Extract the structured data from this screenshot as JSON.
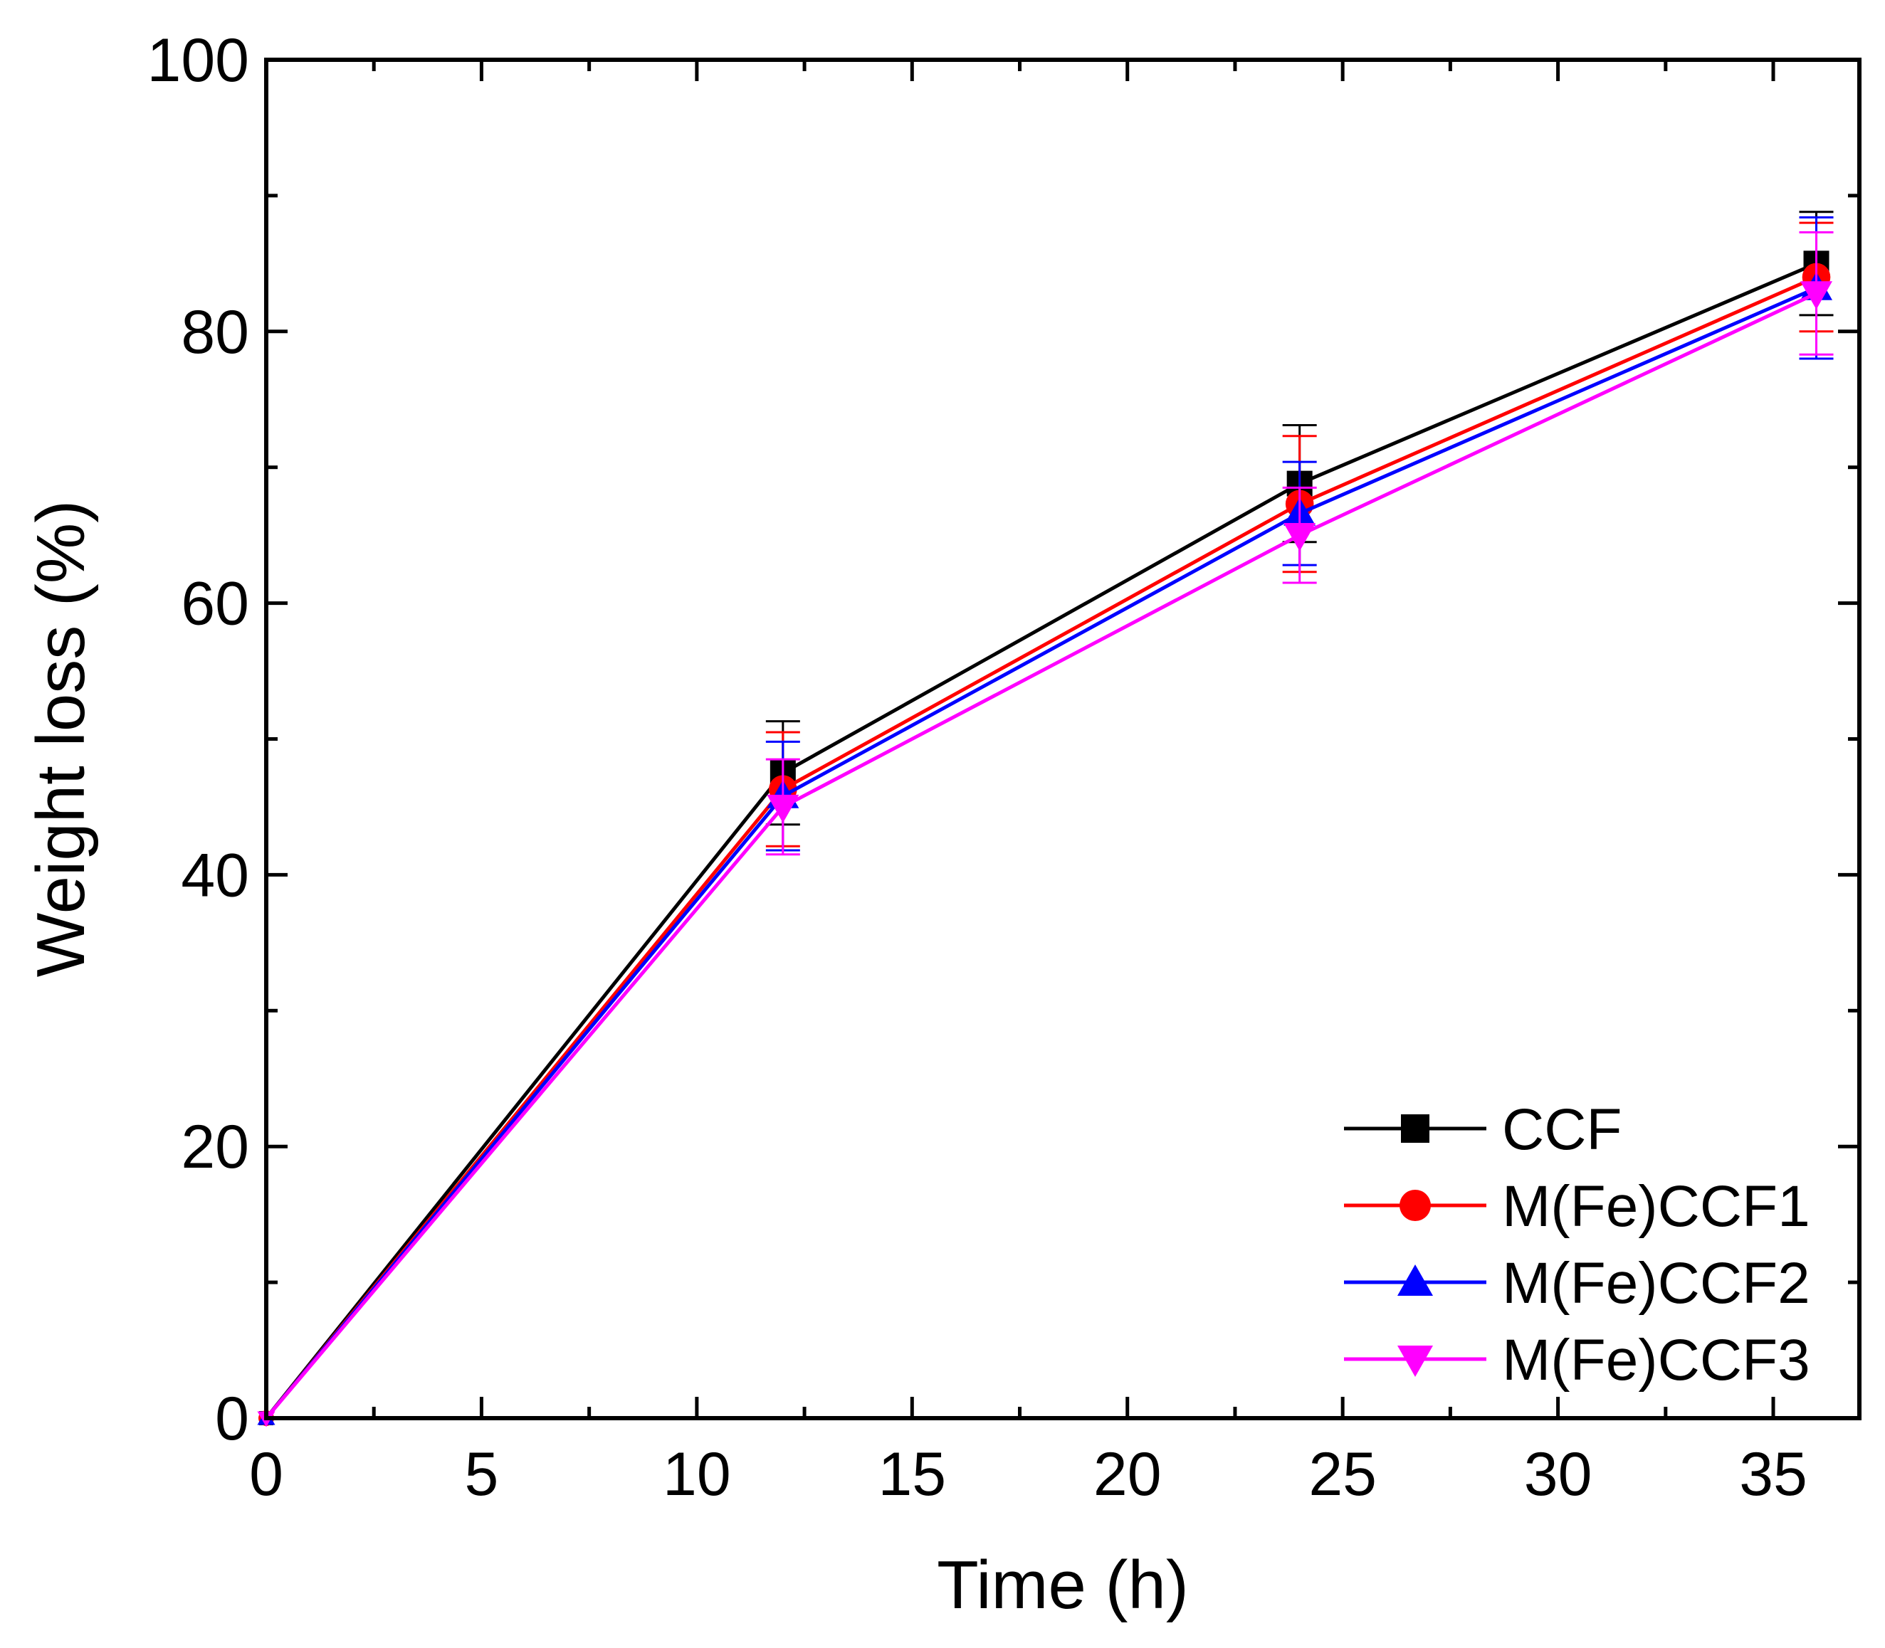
{
  "chart_data": {
    "type": "line",
    "title": "",
    "xlabel": "Time (h)",
    "ylabel": "Weight loss (%)",
    "xlim": [
      0,
      37
    ],
    "ylim": [
      0,
      100
    ],
    "xticks": [
      0,
      5,
      10,
      15,
      20,
      25,
      30,
      35
    ],
    "yticks": [
      0,
      20,
      40,
      60,
      80,
      100
    ],
    "x": [
      0,
      12,
      24,
      36
    ],
    "legend_position": "bottom-right",
    "series": [
      {
        "name": "CCF",
        "color": "#000000",
        "marker": "square",
        "values": [
          0,
          47.5,
          68.8,
          85.0
        ],
        "errors": [
          0,
          3.8,
          4.3,
          3.8
        ]
      },
      {
        "name": "M(Fe)CCF1",
        "color": "#ff0000",
        "marker": "circle",
        "values": [
          0,
          46.3,
          67.3,
          84.0
        ],
        "errors": [
          0,
          4.2,
          5.0,
          4.0
        ]
      },
      {
        "name": "M(Fe)CCF2",
        "color": "#0000ff",
        "marker": "triangle-up",
        "values": [
          0,
          45.8,
          66.6,
          83.2
        ],
        "errors": [
          0,
          4.0,
          3.8,
          5.2
        ]
      },
      {
        "name": "M(Fe)CCF3",
        "color": "#ff00ff",
        "marker": "triangle-down",
        "values": [
          0,
          45.0,
          65.0,
          82.8
        ],
        "errors": [
          0,
          3.5,
          3.5,
          4.5
        ]
      }
    ]
  }
}
